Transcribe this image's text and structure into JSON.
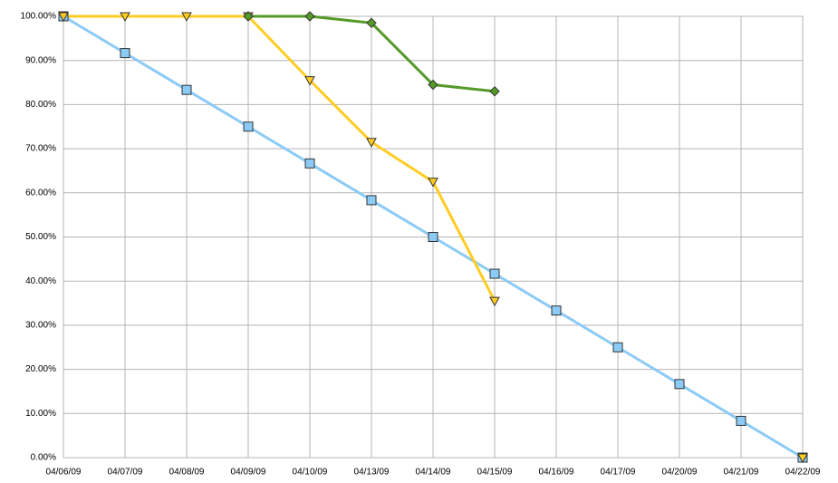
{
  "chart_data": {
    "type": "line",
    "categories": [
      "04/06/09",
      "04/07/09",
      "04/08/09",
      "04/09/09",
      "04/10/09",
      "04/13/09",
      "04/14/09",
      "04/15/09",
      "04/16/09",
      "04/17/09",
      "04/20/09",
      "04/21/09",
      "04/22/09"
    ],
    "series": [
      {
        "color": "#8ccbf5",
        "marker": "square",
        "values": [
          100,
          91.67,
          83.33,
          75,
          66.67,
          58.33,
          50,
          41.67,
          33.33,
          25,
          16.67,
          8.33,
          0
        ]
      },
      {
        "color": "#ffcc22",
        "marker": "triangle",
        "values": [
          100,
          100,
          100,
          100,
          85.5,
          71.5,
          62.5,
          35.5,
          null,
          null,
          null,
          null,
          0
        ]
      },
      {
        "color": "#559a28",
        "marker": "diamond",
        "values": [
          null,
          null,
          null,
          100,
          100,
          98.5,
          84.5,
          83,
          null,
          null,
          null,
          null,
          null
        ]
      }
    ],
    "ylim": [
      0,
      100
    ],
    "yticks": [
      {
        "value": 0,
        "label": "0.00%"
      },
      {
        "value": 10,
        "label": "10.00%"
      },
      {
        "value": 20,
        "label": "20.00%"
      },
      {
        "value": 30,
        "label": "30.00%"
      },
      {
        "value": 40,
        "label": "40.00%"
      },
      {
        "value": 50,
        "label": "50.00%"
      },
      {
        "value": 60,
        "label": "60.00%"
      },
      {
        "value": 70,
        "label": "70.00%"
      },
      {
        "value": 80,
        "label": "80.00%"
      },
      {
        "value": 90,
        "label": "90.00%"
      },
      {
        "value": 100,
        "label": "100.00%"
      }
    ],
    "grid": true
  }
}
